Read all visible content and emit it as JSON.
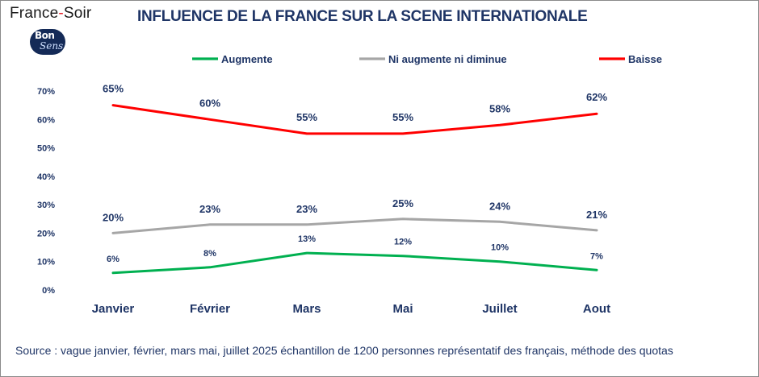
{
  "brand": {
    "name_left": "France",
    "name_sep": "-",
    "name_right": "Soir",
    "logo_top": "Bon",
    "logo_bottom": "Sens"
  },
  "title": "INFLUENCE DE LA FRANCE SUR LA SCENE INTERNATIONALE",
  "source": "Source : vague janvier, février, mars  mai, juillet 2025 échantillon de 1200 personnes représentatif des français, méthode des quotas",
  "colors": {
    "text_dark": "#1f3566",
    "augmente": "#00b050",
    "neutre": "#a6a6a6",
    "baisse": "#ff0000"
  },
  "chart_data": {
    "type": "line",
    "title": "INFLUENCE DE LA FRANCE SUR LA SCENE INTERNATIONALE",
    "categories": [
      "Janvier",
      "Février",
      "Mars",
      "Mai",
      "Juillet",
      "Aout"
    ],
    "ylim": [
      0,
      70
    ],
    "yticks": [
      "0%",
      "10%",
      "20%",
      "30%",
      "40%",
      "50%",
      "60%",
      "70%"
    ],
    "grid": false,
    "legend_position": "top",
    "series": [
      {
        "key": "augmente",
        "name": "Augmente",
        "color": "#00b050",
        "values": [
          6,
          8,
          13,
          12,
          10,
          7
        ],
        "labels": [
          "6%",
          "8%",
          "13%",
          "12%",
          "10%",
          "7%"
        ]
      },
      {
        "key": "neutre",
        "name": "Ni augmente ni diminue",
        "color": "#a6a6a6",
        "values": [
          20,
          23,
          23,
          25,
          24,
          21
        ],
        "labels": [
          "20%",
          "23%",
          "23%",
          "25%",
          "24%",
          "21%"
        ]
      },
      {
        "key": "baisse",
        "name": "Baisse",
        "color": "#ff0000",
        "values": [
          65,
          60,
          55,
          55,
          58,
          62
        ],
        "labels": [
          "65%",
          "60%",
          "55%",
          "55%",
          "58%",
          "62%"
        ]
      }
    ]
  }
}
